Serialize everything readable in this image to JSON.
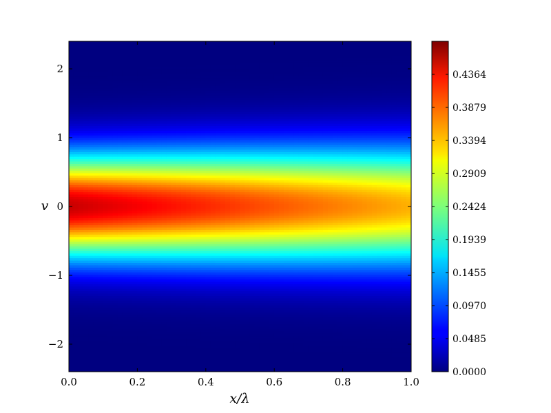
{
  "chart_data": {
    "type": "heatmap",
    "title": "",
    "xlabel": "x/λ",
    "ylabel": "v",
    "xlim": [
      0.0,
      1.0
    ],
    "ylim": [
      -2.4,
      2.4
    ],
    "x_ticks": [
      "0.0",
      "0.2",
      "0.4",
      "0.6",
      "0.8",
      "1.0"
    ],
    "x_tick_values": [
      0.0,
      0.2,
      0.4,
      0.6,
      0.8,
      1.0
    ],
    "y_ticks": [
      "2",
      "1",
      "0",
      "−1",
      "−2"
    ],
    "y_tick_values": [
      2,
      1,
      0,
      -1,
      -2
    ],
    "colormap": "jet",
    "colorbar": {
      "range": [
        0.0,
        0.4849
      ],
      "tick_labels": [
        "0.4364",
        "0.3879",
        "0.3394",
        "0.2909",
        "0.2424",
        "0.1939",
        "0.1455",
        "0.0970",
        "0.0485",
        "0.0000"
      ],
      "tick_values": [
        0.4364,
        0.3879,
        0.3394,
        0.2909,
        0.2424,
        0.1939,
        0.1455,
        0.097,
        0.0485,
        0.0
      ]
    },
    "peak": {
      "x": 0.0,
      "v": 0.0,
      "value": 0.45
    },
    "field_description": "Gaussian in v centered at v=0, width broadening and amplitude decaying with increasing x/λ",
    "sample_profile_centerline": [
      {
        "x": 0.0,
        "value": 0.45
      },
      {
        "x": 0.5,
        "value": 0.38
      },
      {
        "x": 1.0,
        "value": 0.34
      }
    ]
  }
}
